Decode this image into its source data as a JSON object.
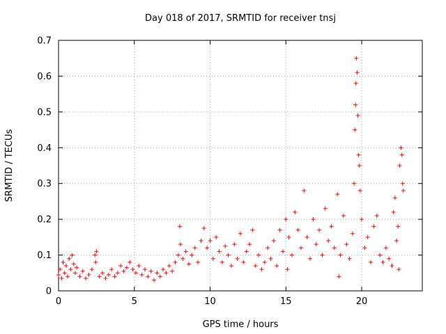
{
  "chart_data": {
    "type": "scatter",
    "title": "Day 018 of 2017, SRMTID for receiver tnsj",
    "xlabel": "GPS time / hours",
    "ylabel": "SRMTID / TECUs",
    "xlim": [
      0,
      24
    ],
    "ylim": [
      0,
      0.7
    ],
    "xticks": [
      0,
      5,
      10,
      15,
      20
    ],
    "yticks": [
      0,
      0.1,
      0.2,
      0.3,
      0.4,
      0.5,
      0.6,
      0.7
    ],
    "grid": true,
    "marker": "+",
    "color": "#ff0000",
    "series": [
      {
        "name": "SRMTID",
        "points": [
          [
            0.0,
            0.045
          ],
          [
            0.1,
            0.06
          ],
          [
            0.2,
            0.035
          ],
          [
            0.3,
            0.08
          ],
          [
            0.4,
            0.05
          ],
          [
            0.5,
            0.07
          ],
          [
            0.6,
            0.04
          ],
          [
            0.7,
            0.09
          ],
          [
            0.8,
            0.06
          ],
          [
            0.9,
            0.1
          ],
          [
            1.0,
            0.075
          ],
          [
            1.1,
            0.05
          ],
          [
            1.2,
            0.065
          ],
          [
            1.4,
            0.04
          ],
          [
            1.6,
            0.055
          ],
          [
            1.8,
            0.035
          ],
          [
            2.0,
            0.045
          ],
          [
            2.2,
            0.06
          ],
          [
            2.4,
            0.1
          ],
          [
            2.45,
            0.08
          ],
          [
            2.5,
            0.11
          ],
          [
            2.7,
            0.04
          ],
          [
            2.9,
            0.05
          ],
          [
            3.1,
            0.035
          ],
          [
            3.3,
            0.045
          ],
          [
            3.5,
            0.06
          ],
          [
            3.7,
            0.04
          ],
          [
            3.9,
            0.05
          ],
          [
            4.1,
            0.07
          ],
          [
            4.3,
            0.055
          ],
          [
            4.5,
            0.065
          ],
          [
            4.7,
            0.08
          ],
          [
            4.9,
            0.06
          ],
          [
            5.1,
            0.05
          ],
          [
            5.3,
            0.07
          ],
          [
            5.5,
            0.045
          ],
          [
            5.7,
            0.06
          ],
          [
            5.9,
            0.04
          ],
          [
            6.1,
            0.055
          ],
          [
            6.3,
            0.03
          ],
          [
            6.5,
            0.05
          ],
          [
            6.7,
            0.04
          ],
          [
            6.9,
            0.06
          ],
          [
            7.1,
            0.05
          ],
          [
            7.3,
            0.07
          ],
          [
            7.5,
            0.055
          ],
          [
            7.7,
            0.08
          ],
          [
            7.9,
            0.1
          ],
          [
            8.0,
            0.18
          ],
          [
            8.05,
            0.13
          ],
          [
            8.2,
            0.09
          ],
          [
            8.4,
            0.11
          ],
          [
            8.6,
            0.075
          ],
          [
            8.8,
            0.1
          ],
          [
            9.0,
            0.12
          ],
          [
            9.2,
            0.08
          ],
          [
            9.4,
            0.14
          ],
          [
            9.6,
            0.175
          ],
          [
            9.8,
            0.12
          ],
          [
            10.0,
            0.14
          ],
          [
            10.2,
            0.09
          ],
          [
            10.4,
            0.15
          ],
          [
            10.6,
            0.11
          ],
          [
            10.8,
            0.08
          ],
          [
            11.0,
            0.125
          ],
          [
            11.2,
            0.1
          ],
          [
            11.4,
            0.07
          ],
          [
            11.6,
            0.13
          ],
          [
            11.8,
            0.09
          ],
          [
            12.0,
            0.16
          ],
          [
            12.2,
            0.08
          ],
          [
            12.4,
            0.11
          ],
          [
            12.6,
            0.13
          ],
          [
            12.8,
            0.17
          ],
          [
            13.0,
            0.07
          ],
          [
            13.2,
            0.1
          ],
          [
            13.4,
            0.06
          ],
          [
            13.6,
            0.08
          ],
          [
            13.8,
            0.12
          ],
          [
            14.0,
            0.09
          ],
          [
            14.2,
            0.14
          ],
          [
            14.4,
            0.07
          ],
          [
            14.6,
            0.17
          ],
          [
            14.8,
            0.11
          ],
          [
            15.0,
            0.2
          ],
          [
            15.1,
            0.06
          ],
          [
            15.2,
            0.15
          ],
          [
            15.4,
            0.1
          ],
          [
            15.6,
            0.22
          ],
          [
            15.8,
            0.17
          ],
          [
            16.0,
            0.12
          ],
          [
            16.2,
            0.28
          ],
          [
            16.4,
            0.15
          ],
          [
            16.6,
            0.09
          ],
          [
            16.8,
            0.2
          ],
          [
            17.0,
            0.13
          ],
          [
            17.2,
            0.17
          ],
          [
            17.4,
            0.1
          ],
          [
            17.6,
            0.23
          ],
          [
            17.8,
            0.14
          ],
          [
            18.0,
            0.18
          ],
          [
            18.2,
            0.12
          ],
          [
            18.4,
            0.27
          ],
          [
            18.5,
            0.04
          ],
          [
            18.6,
            0.1
          ],
          [
            18.8,
            0.21
          ],
          [
            19.0,
            0.13
          ],
          [
            19.2,
            0.09
          ],
          [
            19.4,
            0.16
          ],
          [
            19.5,
            0.3
          ],
          [
            19.55,
            0.45
          ],
          [
            19.6,
            0.52
          ],
          [
            19.62,
            0.58
          ],
          [
            19.65,
            0.65
          ],
          [
            19.7,
            0.61
          ],
          [
            19.75,
            0.49
          ],
          [
            19.8,
            0.38
          ],
          [
            19.85,
            0.35
          ],
          [
            19.9,
            0.28
          ],
          [
            20.0,
            0.2
          ],
          [
            20.2,
            0.12
          ],
          [
            20.4,
            0.15
          ],
          [
            20.6,
            0.08
          ],
          [
            20.8,
            0.18
          ],
          [
            21.0,
            0.21
          ],
          [
            21.2,
            0.1
          ],
          [
            21.4,
            0.08
          ],
          [
            21.6,
            0.12
          ],
          [
            21.8,
            0.09
          ],
          [
            22.0,
            0.07
          ],
          [
            22.1,
            0.22
          ],
          [
            22.2,
            0.26
          ],
          [
            22.3,
            0.14
          ],
          [
            22.4,
            0.18
          ],
          [
            22.45,
            0.06
          ],
          [
            22.5,
            0.35
          ],
          [
            22.6,
            0.4
          ],
          [
            22.65,
            0.38
          ],
          [
            22.7,
            0.3
          ],
          [
            22.75,
            0.28
          ]
        ]
      }
    ]
  }
}
